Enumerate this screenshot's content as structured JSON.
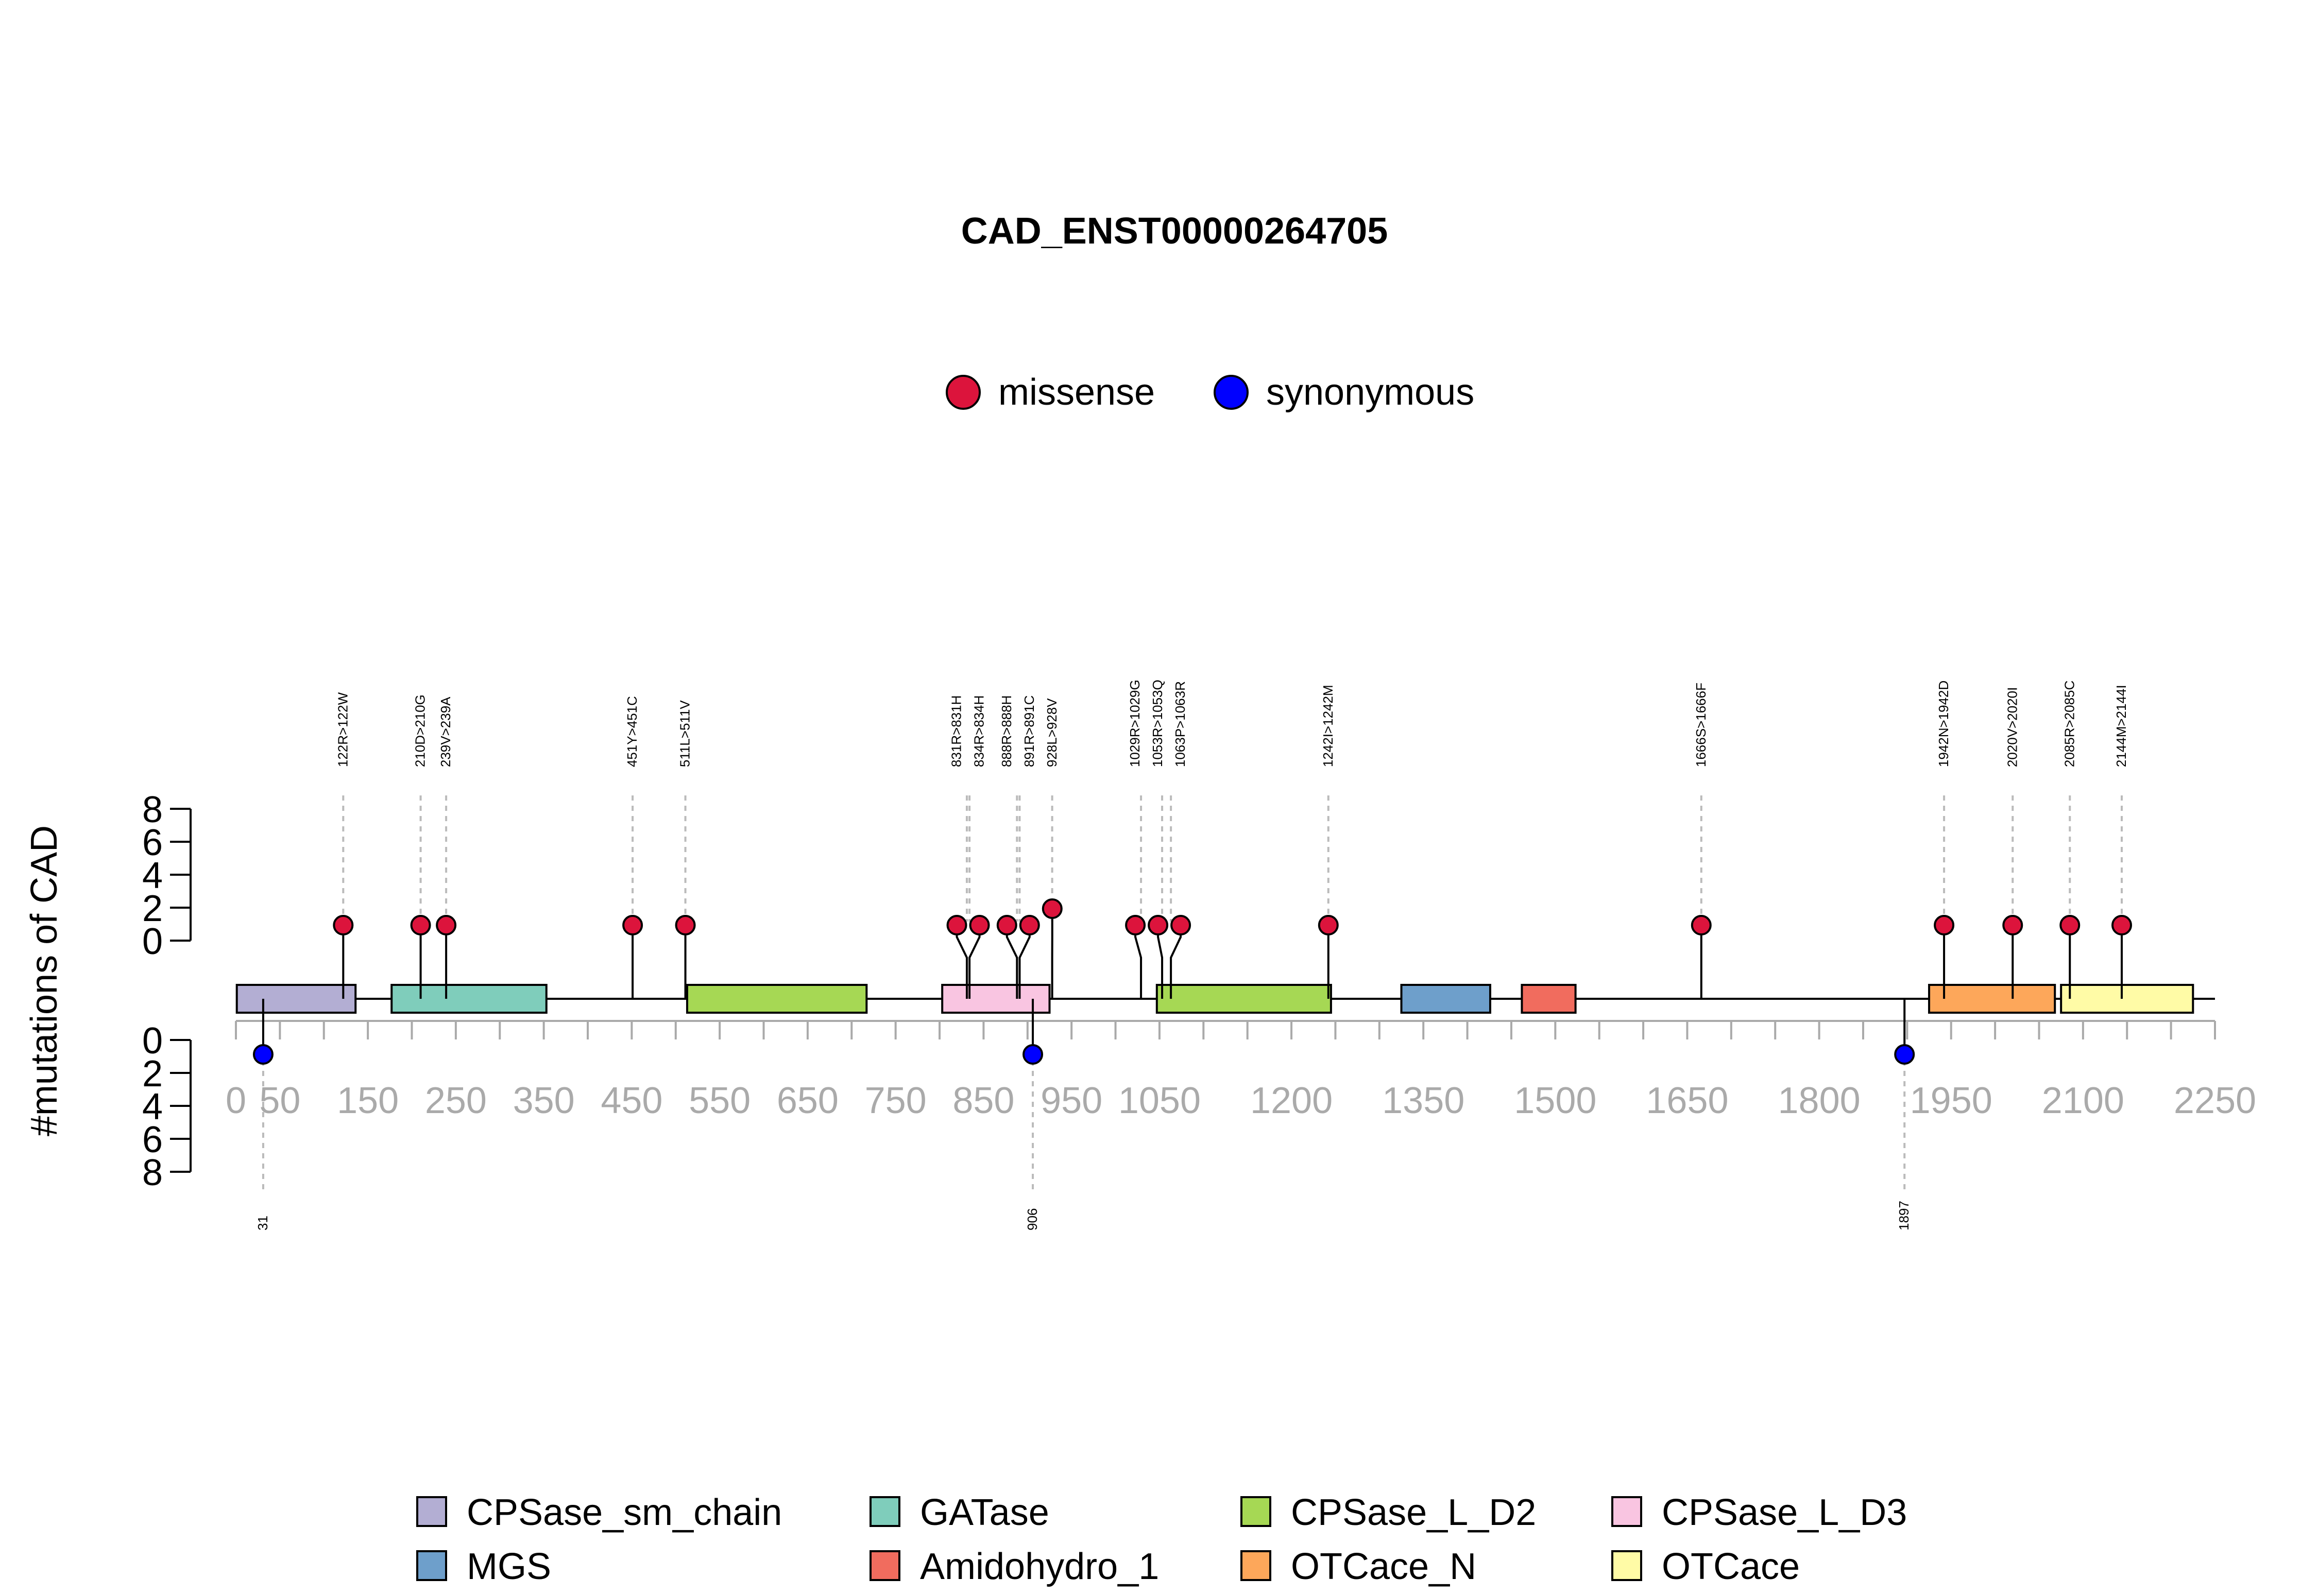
{
  "chart_data": {
    "type": "lollipop",
    "title": "CAD_ENST00000264705",
    "ylabel": "#mutations of CAD",
    "x_range": [
      0,
      2250
    ],
    "x_ticks": [
      0,
      50,
      150,
      250,
      350,
      450,
      550,
      650,
      750,
      850,
      950,
      1050,
      1200,
      1350,
      1500,
      1650,
      1800,
      1950,
      2100,
      2250
    ],
    "y_ticks": [
      0,
      2,
      4,
      6,
      8
    ],
    "y_range": [
      0,
      8
    ],
    "protein_length": 2225,
    "mutation_legend": [
      {
        "name": "missense",
        "color": "#DC143C"
      },
      {
        "name": "synonymous",
        "color": "#0000FF"
      }
    ],
    "missense": [
      {
        "pos": 122,
        "label": "122R>122W",
        "count": 1
      },
      {
        "pos": 210,
        "label": "210D>210G",
        "count": 1
      },
      {
        "pos": 239,
        "label": "239V>239A",
        "count": 1
      },
      {
        "pos": 451,
        "label": "451Y>451C",
        "count": 1
      },
      {
        "pos": 511,
        "label": "511L>511V",
        "count": 1
      },
      {
        "pos": 831,
        "label": "831R>831H",
        "count": 1
      },
      {
        "pos": 834,
        "label": "834R>834H",
        "count": 1
      },
      {
        "pos": 888,
        "label": "888R>888H",
        "count": 1
      },
      {
        "pos": 891,
        "label": "891R>891C",
        "count": 1
      },
      {
        "pos": 928,
        "label": "928L>928V",
        "count": 2
      },
      {
        "pos": 1029,
        "label": "1029R>1029G",
        "count": 1
      },
      {
        "pos": 1053,
        "label": "1053R>1053Q",
        "count": 1
      },
      {
        "pos": 1063,
        "label": "1063P>1063R",
        "count": 1
      },
      {
        "pos": 1242,
        "label": "1242I>1242M",
        "count": 1
      },
      {
        "pos": 1666,
        "label": "1666S>1666F",
        "count": 1
      },
      {
        "pos": 1942,
        "label": "1942N>1942D",
        "count": 1
      },
      {
        "pos": 2020,
        "label": "2020V>2020I",
        "count": 1
      },
      {
        "pos": 2085,
        "label": "2085R>2085C",
        "count": 1
      },
      {
        "pos": 2144,
        "label": "2144M>2144I",
        "count": 1
      }
    ],
    "synonymous": [
      {
        "pos": 31,
        "label": "31",
        "count": 1
      },
      {
        "pos": 906,
        "label": "906",
        "count": 1
      },
      {
        "pos": 1897,
        "label": "1897",
        "count": 1
      }
    ],
    "domains": [
      {
        "name": "CPSase_sm_chain",
        "start": 1,
        "end": 136,
        "color": "#B3AED3"
      },
      {
        "name": "GATase",
        "start": 177,
        "end": 353,
        "color": "#7FCDBB"
      },
      {
        "name": "CPSase_L_D2",
        "start": 513,
        "end": 717,
        "color": "#A6D854"
      },
      {
        "name": "CPSase_L_D3",
        "start": 803,
        "end": 925,
        "color": "#F9C5E1"
      },
      {
        "name": "CPSase_L_D2",
        "start": 1047,
        "end": 1245,
        "color": "#A6D854"
      },
      {
        "name": "MGS",
        "start": 1325,
        "end": 1426,
        "color": "#6E9FCB"
      },
      {
        "name": "Amidohydro_1",
        "start": 1462,
        "end": 1523,
        "color": "#F16C5E"
      },
      {
        "name": "OTCace_N",
        "start": 1925,
        "end": 2068,
        "color": "#FDA75A"
      },
      {
        "name": "OTCace",
        "start": 2075,
        "end": 2225,
        "color": "#FFFBA6"
      }
    ],
    "domain_legend": [
      {
        "name": "CPSase_sm_chain",
        "color": "#B3AED3"
      },
      {
        "name": "GATase",
        "color": "#7FCDBB"
      },
      {
        "name": "CPSase_L_D2",
        "color": "#A6D854"
      },
      {
        "name": "CPSase_L_D3",
        "color": "#F9C5E1"
      },
      {
        "name": "MGS",
        "color": "#6E9FCB"
      },
      {
        "name": "Amidohydro_1",
        "color": "#F16C5E"
      },
      {
        "name": "OTCace_N",
        "color": "#FDA75A"
      },
      {
        "name": "OTCace",
        "color": "#FFFBA6"
      }
    ]
  }
}
